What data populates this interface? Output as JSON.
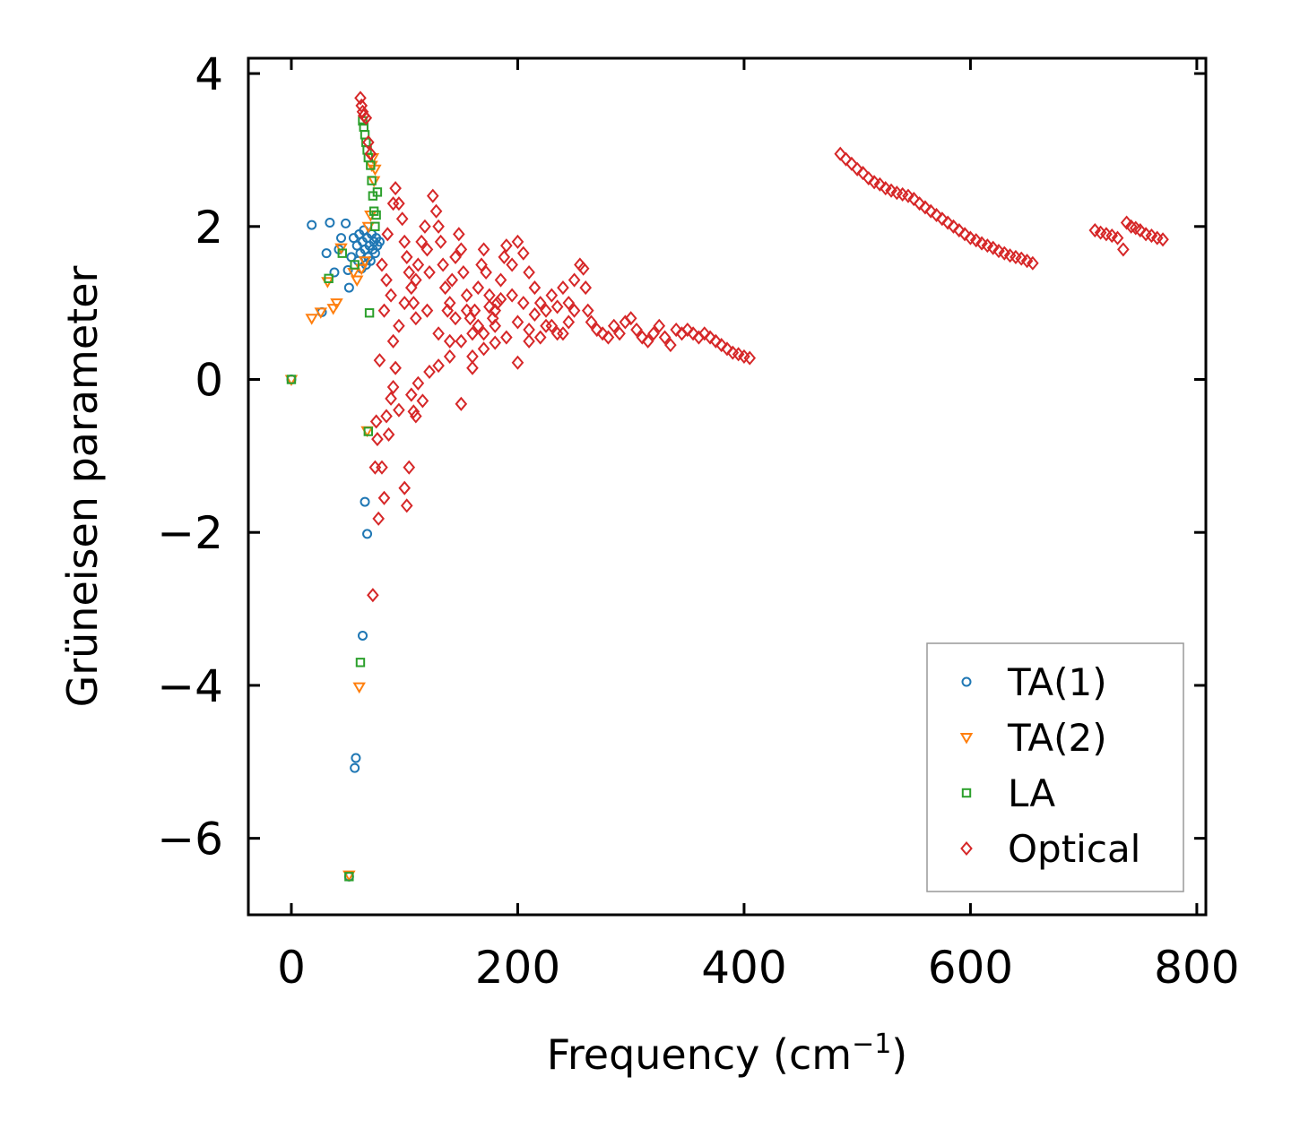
{
  "chart_data": {
    "type": "scatter",
    "title": "",
    "xlabel": "Frequency (cm",
    "xlabel_sup": "−1",
    "xlabel_suffix": ")",
    "ylabel": "Grüneisen parameter",
    "xlim": [
      -38,
      808
    ],
    "ylim": [
      -7,
      4.2
    ],
    "xticks": [
      0,
      200,
      400,
      600,
      800
    ],
    "xtick_labels": [
      "0",
      "200",
      "400",
      "600",
      "800"
    ],
    "yticks": [
      4,
      2,
      0,
      -2,
      -4,
      -6
    ],
    "ytick_labels": [
      "4",
      "2",
      "0",
      "−2",
      "−4",
      "−6"
    ],
    "grid": false,
    "legend_position": "lower-right",
    "series": [
      {
        "name": "TA(1)",
        "marker": "circle",
        "color": "#1f77b4",
        "points": [
          [
            0,
            0
          ],
          [
            18,
            2.02
          ],
          [
            27,
            0.88
          ],
          [
            31,
            1.65
          ],
          [
            34,
            2.05
          ],
          [
            38,
            1.4
          ],
          [
            42,
            1.7
          ],
          [
            44,
            1.85
          ],
          [
            48,
            2.04
          ],
          [
            50,
            1.43
          ],
          [
            51,
            1.2
          ],
          [
            51,
            -6.5
          ],
          [
            53,
            1.6
          ],
          [
            55,
            1.85
          ],
          [
            56,
            -5.08
          ],
          [
            57,
            -4.95
          ],
          [
            58,
            1.75
          ],
          [
            59,
            1.55
          ],
          [
            60,
            1.9
          ],
          [
            61,
            1.65
          ],
          [
            62,
            1.45
          ],
          [
            63,
            1.8
          ],
          [
            63,
            -3.35
          ],
          [
            64,
            1.95
          ],
          [
            65,
            1.7
          ],
          [
            65,
            -1.6
          ],
          [
            66,
            1.5
          ],
          [
            67,
            1.85
          ],
          [
            67,
            -2.02
          ],
          [
            68,
            1.6
          ],
          [
            69,
            1.75
          ],
          [
            70,
            1.55
          ],
          [
            71,
            1.9
          ],
          [
            72,
            1.7
          ],
          [
            73,
            1.8
          ],
          [
            74,
            1.65
          ],
          [
            75,
            1.85
          ],
          [
            76,
            1.75
          ],
          [
            78,
            1.8
          ]
        ]
      },
      {
        "name": "TA(2)",
        "marker": "triangle-down",
        "color": "#ff7f0e",
        "points": [
          [
            0,
            0
          ],
          [
            18,
            0.8
          ],
          [
            26,
            0.88
          ],
          [
            32,
            1.28
          ],
          [
            37,
            0.93
          ],
          [
            40,
            1.0
          ],
          [
            44,
            1.72
          ],
          [
            51,
            -6.48
          ],
          [
            55,
            1.4
          ],
          [
            58,
            1.3
          ],
          [
            60,
            -4.02
          ],
          [
            62,
            1.45
          ],
          [
            65,
            1.55
          ],
          [
            67,
            -0.67
          ],
          [
            68,
            2.0
          ],
          [
            70,
            2.15
          ],
          [
            71,
            2.8
          ],
          [
            72,
            2.9
          ],
          [
            73,
            2.6
          ],
          [
            74,
            2.75
          ]
        ]
      },
      {
        "name": "LA",
        "marker": "square",
        "color": "#2ca02c",
        "points": [
          [
            0,
            0
          ],
          [
            33,
            1.32
          ],
          [
            45,
            1.65
          ],
          [
            51,
            -6.5
          ],
          [
            56,
            1.5
          ],
          [
            61,
            -3.7
          ],
          [
            63,
            3.38
          ],
          [
            64,
            3.3
          ],
          [
            65,
            3.2
          ],
          [
            66,
            3.1
          ],
          [
            67,
            3.0
          ],
          [
            68,
            2.9
          ],
          [
            68,
            -0.68
          ],
          [
            69,
            0.87
          ],
          [
            70,
            2.8
          ],
          [
            71,
            2.6
          ],
          [
            72,
            2.4
          ],
          [
            73,
            2.2
          ],
          [
            74,
            2.0
          ],
          [
            75,
            2.15
          ],
          [
            76,
            2.45
          ]
        ]
      },
      {
        "name": "Optical",
        "marker": "diamond",
        "color": "#d62728",
        "points": [
          [
            61,
            3.68
          ],
          [
            62,
            3.58
          ],
          [
            63,
            3.5
          ],
          [
            64,
            3.45
          ],
          [
            66,
            3.42
          ],
          [
            68,
            3.1
          ],
          [
            70,
            2.95
          ],
          [
            72,
            -2.82
          ],
          [
            74,
            -1.15
          ],
          [
            75,
            -0.55
          ],
          [
            76,
            -0.78
          ],
          [
            77,
            -1.82
          ],
          [
            78,
            0.25
          ],
          [
            80,
            -1.15
          ],
          [
            82,
            -1.55
          ],
          [
            84,
            -0.48
          ],
          [
            86,
            -0.72
          ],
          [
            88,
            -0.25
          ],
          [
            90,
            -0.1
          ],
          [
            92,
            0.15
          ],
          [
            95,
            -0.4
          ],
          [
            100,
            -1.42
          ],
          [
            102,
            -1.65
          ],
          [
            104,
            -1.15
          ],
          [
            106,
            -0.2
          ],
          [
            108,
            -0.42
          ],
          [
            110,
            -0.48
          ],
          [
            112,
            -0.05
          ],
          [
            116,
            -0.28
          ],
          [
            122,
            0.1
          ],
          [
            130,
            0.18
          ],
          [
            140,
            0.3
          ],
          [
            150,
            -0.32
          ],
          [
            160,
            0.15
          ],
          [
            170,
            0.4
          ],
          [
            180,
            0.48
          ],
          [
            200,
            0.22
          ],
          [
            210,
            0.5
          ],
          [
            240,
            0.6
          ],
          [
            80,
            1.5
          ],
          [
            85,
            1.9
          ],
          [
            90,
            2.3
          ],
          [
            92,
            2.5
          ],
          [
            95,
            2.3
          ],
          [
            98,
            2.1
          ],
          [
            100,
            1.8
          ],
          [
            102,
            1.6
          ],
          [
            104,
            1.4
          ],
          [
            106,
            1.2
          ],
          [
            108,
            1.0
          ],
          [
            110,
            0.8
          ],
          [
            112,
            1.5
          ],
          [
            115,
            1.8
          ],
          [
            118,
            2.0
          ],
          [
            120,
            1.7
          ],
          [
            122,
            1.4
          ],
          [
            125,
            2.4
          ],
          [
            128,
            2.2
          ],
          [
            130,
            2.0
          ],
          [
            132,
            1.8
          ],
          [
            134,
            1.5
          ],
          [
            136,
            1.2
          ],
          [
            138,
            0.9
          ],
          [
            140,
            1.0
          ],
          [
            142,
            1.3
          ],
          [
            145,
            1.6
          ],
          [
            148,
            1.9
          ],
          [
            150,
            1.7
          ],
          [
            152,
            1.4
          ],
          [
            155,
            1.1
          ],
          [
            158,
            0.8
          ],
          [
            160,
            0.6
          ],
          [
            162,
            0.9
          ],
          [
            165,
            1.2
          ],
          [
            168,
            1.5
          ],
          [
            170,
            1.7
          ],
          [
            172,
            1.4
          ],
          [
            175,
            1.1
          ],
          [
            178,
            0.8
          ],
          [
            180,
            0.7
          ],
          [
            182,
            1.0
          ],
          [
            185,
            1.3
          ],
          [
            188,
            1.6
          ],
          [
            190,
            1.75
          ],
          [
            195,
            1.5
          ],
          [
            200,
            1.8
          ],
          [
            205,
            1.65
          ],
          [
            210,
            1.4
          ],
          [
            215,
            1.2
          ],
          [
            220,
            1.0
          ],
          [
            225,
            0.9
          ],
          [
            230,
            1.1
          ],
          [
            235,
            0.95
          ],
          [
            240,
            1.2
          ],
          [
            245,
            1.0
          ],
          [
            250,
            1.3
          ],
          [
            255,
            1.5
          ],
          [
            258,
            1.45
          ],
          [
            260,
            1.2
          ],
          [
            262,
            0.9
          ],
          [
            265,
            0.75
          ],
          [
            270,
            0.65
          ],
          [
            275,
            0.6
          ],
          [
            280,
            0.55
          ],
          [
            285,
            0.7
          ],
          [
            290,
            0.6
          ],
          [
            295,
            0.75
          ],
          [
            300,
            0.8
          ],
          [
            305,
            0.65
          ],
          [
            310,
            0.55
          ],
          [
            315,
            0.5
          ],
          [
            320,
            0.6
          ],
          [
            325,
            0.7
          ],
          [
            330,
            0.55
          ],
          [
            335,
            0.45
          ],
          [
            340,
            0.65
          ],
          [
            345,
            0.6
          ],
          [
            350,
            0.65
          ],
          [
            355,
            0.6
          ],
          [
            360,
            0.55
          ],
          [
            365,
            0.6
          ],
          [
            370,
            0.55
          ],
          [
            375,
            0.5
          ],
          [
            380,
            0.45
          ],
          [
            385,
            0.4
          ],
          [
            390,
            0.35
          ],
          [
            395,
            0.33
          ],
          [
            400,
            0.3
          ],
          [
            405,
            0.28
          ],
          [
            150,
            0.5
          ],
          [
            160,
            0.3
          ],
          [
            170,
            0.6
          ],
          [
            180,
            0.9
          ],
          [
            190,
            0.55
          ],
          [
            200,
            0.75
          ],
          [
            210,
            0.65
          ],
          [
            220,
            0.55
          ],
          [
            230,
            0.7
          ],
          [
            120,
            0.9
          ],
          [
            130,
            0.6
          ],
          [
            140,
            0.5
          ],
          [
            110,
            1.3
          ],
          [
            100,
            1.0
          ],
          [
            95,
            0.7
          ],
          [
            90,
            0.5
          ],
          [
            88,
            1.1
          ],
          [
            84,
            1.3
          ],
          [
            82,
            0.9
          ],
          [
            145,
            0.8
          ],
          [
            155,
            0.9
          ],
          [
            165,
            0.7
          ],
          [
            175,
            0.95
          ],
          [
            185,
            1.05
          ],
          [
            195,
            1.1
          ],
          [
            205,
            1.0
          ],
          [
            215,
            0.85
          ],
          [
            225,
            0.7
          ],
          [
            235,
            0.6
          ],
          [
            245,
            0.75
          ],
          [
            250,
            0.9
          ],
          [
            485,
            2.95
          ],
          [
            490,
            2.88
          ],
          [
            495,
            2.82
          ],
          [
            500,
            2.75
          ],
          [
            505,
            2.7
          ],
          [
            510,
            2.63
          ],
          [
            515,
            2.58
          ],
          [
            520,
            2.55
          ],
          [
            525,
            2.5
          ],
          [
            530,
            2.47
          ],
          [
            535,
            2.44
          ],
          [
            540,
            2.42
          ],
          [
            545,
            2.4
          ],
          [
            550,
            2.36
          ],
          [
            555,
            2.3
          ],
          [
            560,
            2.25
          ],
          [
            565,
            2.2
          ],
          [
            570,
            2.15
          ],
          [
            575,
            2.1
          ],
          [
            580,
            2.05
          ],
          [
            585,
            2.0
          ],
          [
            590,
            1.95
          ],
          [
            595,
            1.9
          ],
          [
            600,
            1.85
          ],
          [
            605,
            1.82
          ],
          [
            610,
            1.78
          ],
          [
            615,
            1.75
          ],
          [
            620,
            1.72
          ],
          [
            625,
            1.68
          ],
          [
            630,
            1.65
          ],
          [
            635,
            1.62
          ],
          [
            640,
            1.6
          ],
          [
            645,
            1.58
          ],
          [
            650,
            1.55
          ],
          [
            655,
            1.52
          ],
          [
            710,
            1.95
          ],
          [
            715,
            1.92
          ],
          [
            720,
            1.9
          ],
          [
            725,
            1.88
          ],
          [
            730,
            1.85
          ],
          [
            735,
            1.7
          ],
          [
            738,
            2.05
          ],
          [
            742,
            2.0
          ],
          [
            746,
            1.98
          ],
          [
            750,
            1.95
          ],
          [
            755,
            1.9
          ],
          [
            760,
            1.88
          ],
          [
            765,
            1.85
          ],
          [
            770,
            1.83
          ]
        ]
      }
    ]
  }
}
